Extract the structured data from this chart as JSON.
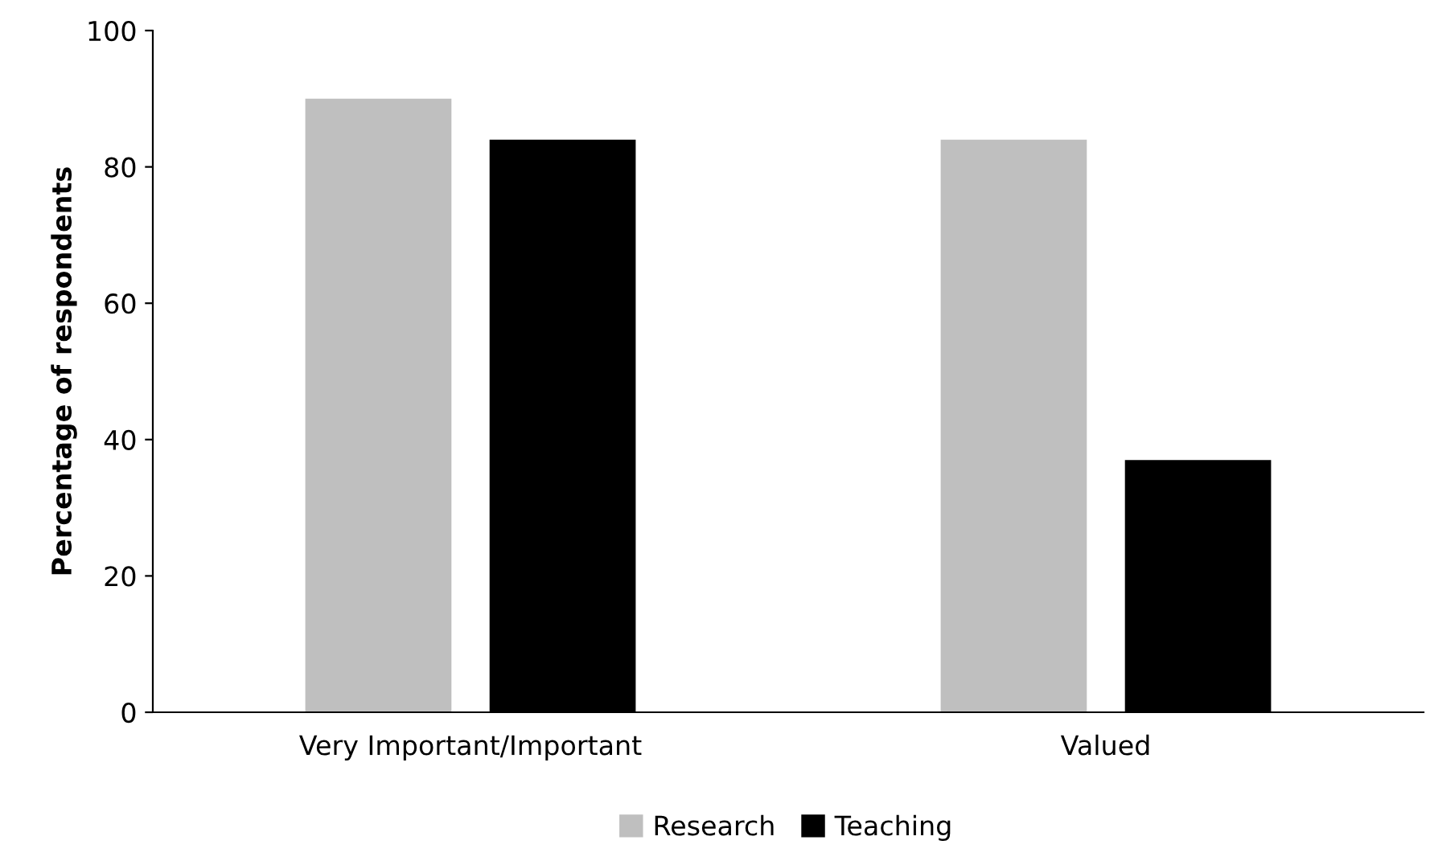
{
  "chart_data": {
    "type": "bar",
    "ylabel": "Percentage of respondents",
    "categories": [
      "Very Important/Important",
      "Valued"
    ],
    "series": [
      {
        "name": "Research",
        "color": "#bfbfbf",
        "values": [
          90,
          84
        ]
      },
      {
        "name": "Teaching",
        "color": "#000000",
        "values": [
          84,
          37
        ]
      }
    ],
    "ylim": [
      0,
      100
    ],
    "yticks": [
      0,
      20,
      40,
      60,
      80,
      100
    ],
    "grid": false,
    "legend": "bottom"
  }
}
